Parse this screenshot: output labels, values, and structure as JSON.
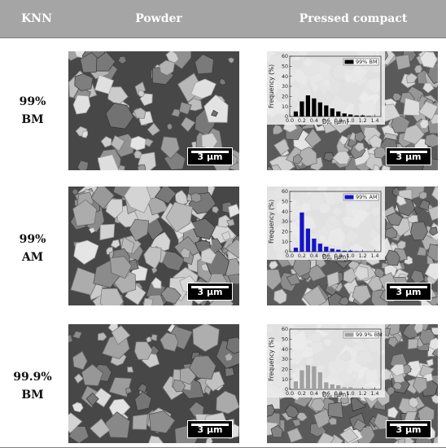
{
  "header": {
    "col1": "KNN",
    "col2": "Powder",
    "col3": "Pressed compact",
    "background": "#a5a5a5"
  },
  "rows": [
    {
      "label_line1": "99%",
      "label_line2": "BM",
      "scale_label": "3 μm"
    },
    {
      "label_line1": "99%",
      "label_line2": "AM",
      "scale_label": "3 μm"
    },
    {
      "label_line1": "99.9%",
      "label_line2": "BM",
      "scale_label": "3 μm"
    }
  ],
  "chart_data": [
    {
      "type": "bar",
      "series": [
        {
          "name": "99% BM",
          "color": "#000000",
          "x": [
            0.1,
            0.2,
            0.3,
            0.4,
            0.5,
            0.6,
            0.7,
            0.8,
            0.9,
            1.0,
            1.1,
            1.2,
            1.3
          ],
          "values": [
            5,
            15,
            21,
            18,
            14,
            11,
            8,
            5,
            3,
            2,
            1,
            1,
            0.5
          ]
        }
      ],
      "xlabel": "D_eq (μm)",
      "ylabel": "Frequency (%)",
      "xlim": [
        0.0,
        1.5
      ],
      "ylim": [
        0,
        60
      ],
      "xticks": [
        "0.0",
        "0.2",
        "0.4",
        "0.6",
        "0.8",
        "1.0",
        "1.2",
        "1.4"
      ],
      "yticks": [
        "0",
        "10",
        "20",
        "30",
        "40",
        "50",
        "60"
      ],
      "legend": "top-right"
    },
    {
      "type": "bar",
      "series": [
        {
          "name": "99% AM",
          "color": "#1414c8",
          "x": [
            0.1,
            0.2,
            0.3,
            0.4,
            0.5,
            0.6,
            0.7,
            0.8,
            0.9,
            1.0,
            1.1,
            1.2,
            1.3
          ],
          "values": [
            4,
            39,
            23,
            13,
            8,
            5,
            3,
            2,
            1,
            1,
            0.5,
            0.3,
            0.2
          ]
        }
      ],
      "xlabel": "D_eq (μm)",
      "ylabel": "Frequency (%)",
      "xlim": [
        0.0,
        1.5
      ],
      "ylim": [
        0,
        60
      ],
      "xticks": [
        "0.0",
        "0.2",
        "0.4",
        "0.6",
        "0.8",
        "1.0",
        "1.2",
        "1.4"
      ],
      "yticks": [
        "0",
        "10",
        "20",
        "30",
        "40",
        "50",
        "60"
      ],
      "legend": "top-right"
    },
    {
      "type": "bar",
      "series": [
        {
          "name": "99.9% BM",
          "color": "#a0a0a0",
          "x": [
            0.1,
            0.2,
            0.3,
            0.4,
            0.5,
            0.6,
            0.7,
            0.8,
            0.9,
            1.0,
            1.1,
            1.2,
            1.3
          ],
          "values": [
            8,
            19,
            24,
            23,
            17,
            7,
            5,
            4,
            2,
            2,
            1,
            1,
            0.5
          ]
        }
      ],
      "xlabel": "D_eq (μm)",
      "ylabel": "Frequency (%)",
      "xlim": [
        0.0,
        1.5
      ],
      "ylim": [
        0,
        60
      ],
      "xticks": [
        "0.0",
        "0.2",
        "0.4",
        "0.6",
        "0.8",
        "1.0",
        "1.2",
        "1.4"
      ],
      "yticks": [
        "0",
        "10",
        "20",
        "30",
        "40",
        "50",
        "60"
      ],
      "legend": "top-right"
    }
  ]
}
